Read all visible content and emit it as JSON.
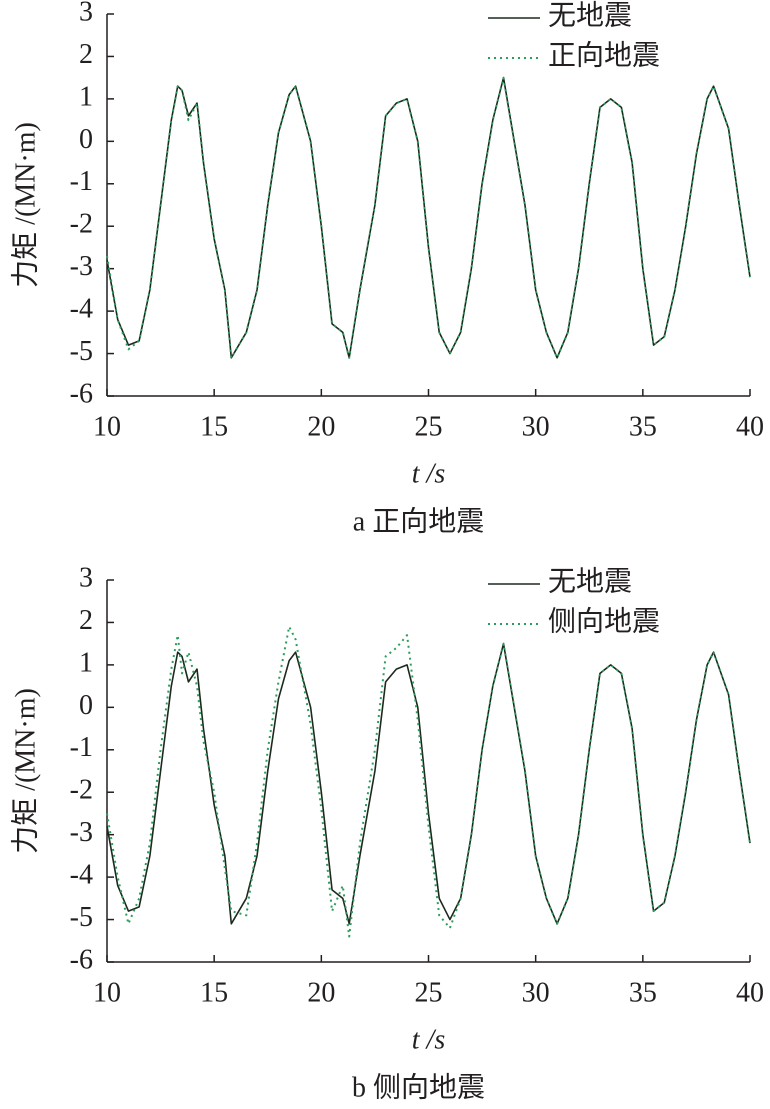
{
  "chart_data": [
    {
      "type": "line",
      "caption": "a  正向地震",
      "xlabel": "t /s",
      "ylabel": "力矩 /(MN·m)",
      "legend": "upper right",
      "xlim": [
        10,
        40
      ],
      "xticks": [
        10,
        15,
        20,
        25,
        30,
        35,
        40
      ],
      "ylim": [
        -6,
        3
      ],
      "yticks": [
        -6,
        -5,
        -4,
        -3,
        -2,
        -1,
        0,
        1,
        2,
        3
      ],
      "x": [
        10,
        10.5,
        11,
        11.5,
        12,
        12.5,
        13,
        13.3,
        13.5,
        13.8,
        14.2,
        14.5,
        15,
        15.5,
        15.8,
        16.5,
        17,
        17.5,
        18,
        18.5,
        18.8,
        19.5,
        20,
        20.5,
        21,
        21.3,
        21.8,
        22.5,
        23,
        23.5,
        24,
        24.5,
        25,
        25.5,
        26,
        26.5,
        27,
        27.5,
        28,
        28.5,
        29,
        29.5,
        30,
        30.5,
        31,
        31.5,
        32,
        32.5,
        33,
        33.5,
        34,
        34.5,
        35,
        35.5,
        36,
        36.5,
        37,
        37.5,
        38,
        38.3,
        39,
        39.5,
        40
      ],
      "series": [
        {
          "name": "无地震",
          "color": "#1c2a1e",
          "style": "solid",
          "values": [
            -2.8,
            -4.2,
            -4.8,
            -4.7,
            -3.5,
            -1.5,
            0.5,
            1.3,
            1.2,
            0.6,
            0.9,
            -0.5,
            -2.3,
            -3.5,
            -5.1,
            -4.5,
            -3.5,
            -1.5,
            0.2,
            1.1,
            1.3,
            0,
            -2,
            -4.3,
            -4.5,
            -5.1,
            -3.5,
            -1.5,
            0.6,
            0.9,
            1.0,
            0,
            -2.5,
            -4.5,
            -5.0,
            -4.5,
            -3,
            -1,
            0.5,
            1.5,
            0,
            -1.5,
            -3.5,
            -4.5,
            -5.1,
            -4.5,
            -3,
            -1.0,
            0.8,
            1.0,
            0.8,
            -0.5,
            -3,
            -4.8,
            -4.6,
            -3.5,
            -2,
            -0.3,
            1.0,
            1.3,
            0.3,
            -1.5,
            -3.2
          ]
        },
        {
          "name": "正向地震",
          "color": "#2a9d5c",
          "style": "dotted",
          "values": [
            -2.7,
            -4.2,
            -4.9,
            -4.7,
            -3.5,
            -1.5,
            0.5,
            1.3,
            1.2,
            0.5,
            0.9,
            -0.5,
            -2.3,
            -3.5,
            -5.1,
            -4.5,
            -3.5,
            -1.5,
            0.2,
            1.1,
            1.3,
            0,
            -2,
            -4.3,
            -4.5,
            -5.1,
            -3.5,
            -1.5,
            0.6,
            0.9,
            1.0,
            0,
            -2.5,
            -4.5,
            -5.0,
            -4.5,
            -3,
            -1,
            0.5,
            1.5,
            0,
            -1.5,
            -3.5,
            -4.5,
            -5.1,
            -4.5,
            -3,
            -1.0,
            0.8,
            1.0,
            0.8,
            -0.5,
            -3,
            -4.8,
            -4.6,
            -3.5,
            -2,
            -0.3,
            1.0,
            1.3,
            0.3,
            -1.5,
            -3.2
          ]
        }
      ]
    },
    {
      "type": "line",
      "caption": "b  侧向地震",
      "xlabel": "t /s",
      "ylabel": "力矩 /(MN·m)",
      "legend": "upper right",
      "xlim": [
        10,
        40
      ],
      "xticks": [
        10,
        15,
        20,
        25,
        30,
        35,
        40
      ],
      "ylim": [
        -6,
        3
      ],
      "yticks": [
        -6,
        -5,
        -4,
        -3,
        -2,
        -1,
        0,
        1,
        2,
        3
      ],
      "x": [
        10,
        10.5,
        11,
        11.5,
        12,
        12.5,
        13,
        13.3,
        13.5,
        13.8,
        14.2,
        14.5,
        15,
        15.5,
        15.8,
        16.5,
        17,
        17.5,
        18,
        18.5,
        18.8,
        19.5,
        20,
        20.5,
        21,
        21.3,
        21.8,
        22.5,
        23,
        23.5,
        24,
        24.5,
        25,
        25.5,
        26,
        26.5,
        27,
        27.5,
        28,
        28.5,
        29,
        29.5,
        30,
        30.5,
        31,
        31.5,
        32,
        32.5,
        33,
        33.5,
        34,
        34.5,
        35,
        35.5,
        36,
        36.5,
        37,
        37.5,
        38,
        38.3,
        39,
        39.5,
        40
      ],
      "series": [
        {
          "name": "无地震",
          "color": "#1c2a1e",
          "style": "solid",
          "values": [
            -2.8,
            -4.2,
            -4.8,
            -4.7,
            -3.5,
            -1.5,
            0.5,
            1.3,
            1.2,
            0.6,
            0.9,
            -0.5,
            -2.3,
            -3.5,
            -5.1,
            -4.5,
            -3.5,
            -1.5,
            0.2,
            1.1,
            1.3,
            0,
            -2,
            -4.3,
            -4.5,
            -5.1,
            -3.5,
            -1.5,
            0.6,
            0.9,
            1.0,
            0,
            -2.5,
            -4.5,
            -5.0,
            -4.5,
            -3,
            -1,
            0.5,
            1.5,
            0,
            -1.5,
            -3.5,
            -4.5,
            -5.1,
            -4.5,
            -3,
            -1.0,
            0.8,
            1.0,
            0.8,
            -0.5,
            -3,
            -4.8,
            -4.6,
            -3.5,
            -2,
            -0.3,
            1.0,
            1.3,
            0.3,
            -1.5,
            -3.2
          ]
        },
        {
          "name": "侧向地震",
          "color": "#2a9d5c",
          "style": "dotted",
          "values": [
            -2.5,
            -4.0,
            -5.1,
            -4.5,
            -3.2,
            -1.0,
            0.9,
            1.7,
            0.8,
            1.3,
            0.5,
            -0.8,
            -2.0,
            -3.8,
            -4.8,
            -4.9,
            -3.2,
            -1.0,
            0.6,
            1.9,
            1.6,
            -0.4,
            -2.4,
            -4.8,
            -4.2,
            -5.4,
            -3.2,
            -1.0,
            1.2,
            1.4,
            1.7,
            -0.3,
            -2.8,
            -4.9,
            -5.2,
            -4.5,
            -3,
            -1,
            0.5,
            1.5,
            0,
            -1.5,
            -3.5,
            -4.5,
            -5.1,
            -4.5,
            -3,
            -1.0,
            0.8,
            1.0,
            0.8,
            -0.5,
            -3,
            -4.8,
            -4.6,
            -3.5,
            -2,
            -0.3,
            1.0,
            1.3,
            0.3,
            -1.5,
            -3.2
          ]
        }
      ]
    }
  ]
}
